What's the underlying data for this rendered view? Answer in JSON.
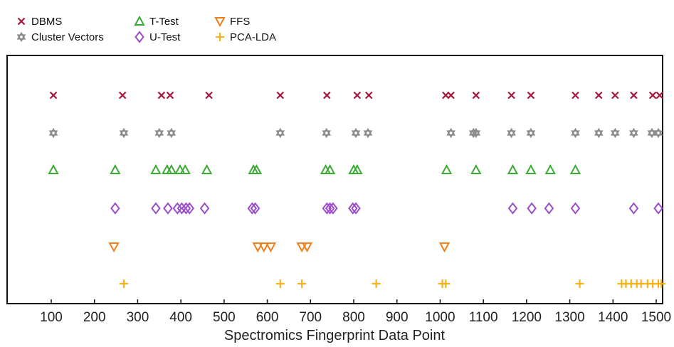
{
  "chart_data": {
    "type": "scatter",
    "title": "",
    "xlabel": "Spectromics Fingerprint Data Point",
    "ylabel": "",
    "xlim": [
      0,
      1520
    ],
    "x_ticks": [
      100,
      200,
      300,
      400,
      500,
      600,
      700,
      800,
      900,
      1000,
      1100,
      1200,
      1300,
      1400,
      1500
    ],
    "y_ticks_visible": false,
    "grid": false,
    "legend_position": "top-left, above plot (3 columns)",
    "series": [
      {
        "name": "DBMS",
        "marker": "x",
        "color": "#a6163a",
        "x": [
          105,
          265,
          355,
          375,
          465,
          630,
          738,
          808,
          835,
          1013,
          1025,
          1083,
          1165,
          1210,
          1313,
          1367,
          1405,
          1448,
          1492,
          1508
        ]
      },
      {
        "name": "Cluster Vectors",
        "marker": "hexagram",
        "color": "#8c8c8c",
        "x": [
          105,
          268,
          350,
          378,
          630,
          737,
          805,
          833,
          1025,
          1077,
          1083,
          1165,
          1210,
          1313,
          1367,
          1405,
          1448,
          1490,
          1505
        ]
      },
      {
        "name": "T-Test",
        "marker": "triangle-up",
        "color": "#3aaa35",
        "x": [
          105,
          248,
          342,
          368,
          378,
          398,
          410,
          460,
          568,
          575,
          735,
          745,
          800,
          808,
          1015,
          1083,
          1168,
          1210,
          1255,
          1313
        ]
      },
      {
        "name": "U-Test",
        "marker": "diamond",
        "color": "#9b4dca",
        "x": [
          248,
          342,
          370,
          392,
          402,
          412,
          420,
          455,
          565,
          572,
          738,
          745,
          752,
          798,
          805,
          1168,
          1212,
          1252,
          1313,
          1448,
          1505
        ]
      },
      {
        "name": "FFS",
        "marker": "triangle-down",
        "color": "#f07f1a",
        "x": [
          245,
          578,
          592,
          608,
          680,
          692,
          1010
        ]
      },
      {
        "name": "PCA-LDA",
        "marker": "plus",
        "color": "#f5b21b",
        "x": [
          268,
          630,
          680,
          852,
          1005,
          1013,
          1323,
          1420,
          1430,
          1442,
          1455,
          1465,
          1480,
          1492,
          1505,
          1512
        ]
      }
    ]
  }
}
